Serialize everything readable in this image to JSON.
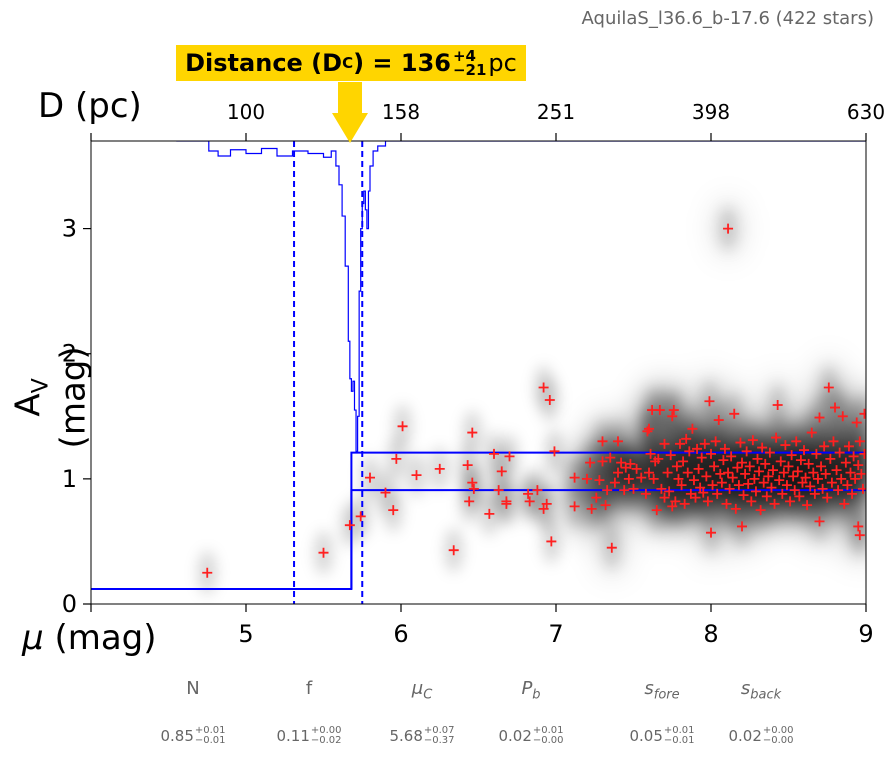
{
  "subtitle": "AquilaS_l36.6_b-17.6 (422 stars)",
  "callout": {
    "prefix": "Distance (D",
    "sub": "C",
    "mid": ") = 136",
    "plus": "+4",
    "minus": "−21",
    "unit": " pc"
  },
  "colors": {
    "step": "#0000ff",
    "stars": "#ff2020",
    "callout": "#ffd500"
  },
  "chart_data": {
    "type": "scatter",
    "xlabel_symbol": "μ",
    "xlabel_unit": " (mag)",
    "ylabel": "A",
    "ylabel_sub": "V",
    "ylabel_unit": " (mag)",
    "top_axis_label": "D (pc)",
    "xlim": [
      4,
      9
    ],
    "ylim": [
      0,
      3.7
    ],
    "x_ticks": [
      5,
      6,
      7,
      8,
      9
    ],
    "y_ticks": [
      0,
      1,
      2,
      3
    ],
    "top_ticks": [
      {
        "label": "100",
        "mu": 5
      },
      {
        "label": "158",
        "mu": 6
      },
      {
        "label": "251",
        "mu": 7
      },
      {
        "label": "398",
        "mu": 8
      },
      {
        "label": "630",
        "mu": 9
      }
    ],
    "distance_modulus": 5.68,
    "dashed_lines_mu": [
      5.31,
      5.75
    ],
    "extinction_fore": 0.12,
    "extinction_back_band": [
      0.91,
      1.21
    ],
    "stars": [
      [
        4.75,
        0.25
      ],
      [
        5.5,
        0.41
      ],
      [
        5.67,
        0.63
      ],
      [
        5.74,
        0.7
      ],
      [
        5.8,
        1.01
      ],
      [
        5.9,
        0.89
      ],
      [
        5.95,
        0.75
      ],
      [
        5.97,
        1.16
      ],
      [
        6.01,
        1.42
      ],
      [
        6.1,
        1.03
      ],
      [
        6.25,
        1.08
      ],
      [
        6.34,
        0.43
      ],
      [
        6.43,
        1.11
      ],
      [
        6.44,
        0.82
      ],
      [
        6.46,
        0.97
      ],
      [
        6.47,
        0.92
      ],
      [
        6.46,
        1.37
      ],
      [
        6.57,
        0.72
      ],
      [
        6.6,
        1.2
      ],
      [
        6.63,
        0.91
      ],
      [
        6.65,
        1.06
      ],
      [
        6.68,
        0.82
      ],
      [
        6.68,
        0.8
      ],
      [
        6.7,
        1.18
      ],
      [
        6.82,
        0.88
      ],
      [
        6.83,
        0.82
      ],
      [
        6.88,
        0.91
      ],
      [
        6.92,
        1.73
      ],
      [
        6.92,
        0.76
      ],
      [
        6.94,
        0.8
      ],
      [
        6.96,
        1.63
      ],
      [
        6.97,
        0.5
      ],
      [
        6.99,
        1.22
      ],
      [
        7.12,
        0.78
      ],
      [
        7.12,
        1.01
      ],
      [
        7.2,
        1.0
      ],
      [
        7.22,
        1.13
      ],
      [
        7.23,
        0.76
      ],
      [
        7.26,
        0.85
      ],
      [
        7.28,
        0.99
      ],
      [
        7.3,
        1.3
      ],
      [
        7.3,
        1.14
      ],
      [
        7.32,
        0.79
      ],
      [
        7.33,
        0.91
      ],
      [
        7.35,
        1.17
      ],
      [
        7.36,
        0.45
      ],
      [
        7.38,
        0.97
      ],
      [
        7.4,
        1.3
      ],
      [
        7.4,
        1.05
      ],
      [
        7.42,
        1.13
      ],
      [
        7.44,
        0.91
      ],
      [
        7.45,
        1.09
      ],
      [
        7.47,
        1.0
      ],
      [
        7.48,
        1.12
      ],
      [
        7.5,
        0.92
      ],
      [
        7.52,
        1.08
      ],
      [
        7.55,
        1.01
      ],
      [
        7.58,
        0.88
      ],
      [
        7.59,
        1.38
      ],
      [
        7.6,
        1.05
      ],
      [
        7.6,
        1.4
      ],
      [
        7.61,
        1.2
      ],
      [
        7.62,
        1.55
      ],
      [
        7.63,
        1.0
      ],
      [
        7.64,
        1.14
      ],
      [
        7.65,
        0.75
      ],
      [
        7.66,
        1.16
      ],
      [
        7.67,
        1.55
      ],
      [
        7.68,
        0.92
      ],
      [
        7.7,
        0.85
      ],
      [
        7.7,
        1.28
      ],
      [
        7.72,
        1.05
      ],
      [
        7.73,
        0.9
      ],
      [
        7.74,
        1.19
      ],
      [
        7.75,
        0.78
      ],
      [
        7.75,
        1.5
      ],
      [
        7.76,
        1.55
      ],
      [
        7.77,
        0.82
      ],
      [
        7.78,
        1.1
      ],
      [
        7.79,
        1.0
      ],
      [
        7.8,
        1.28
      ],
      [
        7.81,
        0.95
      ],
      [
        7.82,
        1.14
      ],
      [
        7.83,
        0.8
      ],
      [
        7.84,
        1.32
      ],
      [
        7.85,
        1.05
      ],
      [
        7.86,
        1.22
      ],
      [
        7.87,
        0.88
      ],
      [
        7.88,
        1.4
      ],
      [
        7.89,
        0.99
      ],
      [
        7.9,
        0.85
      ],
      [
        7.91,
        1.24
      ],
      [
        7.92,
        1.08
      ],
      [
        7.93,
        0.93
      ],
      [
        7.94,
        1.17
      ],
      [
        7.95,
        0.89
      ],
      [
        7.96,
        1.28
      ],
      [
        7.97,
        1.02
      ],
      [
        7.98,
        0.82
      ],
      [
        7.99,
        1.62
      ],
      [
        8.0,
        0.57
      ],
      [
        8.0,
        1.2
      ],
      [
        8.01,
        0.95
      ],
      [
        8.02,
        1.1
      ],
      [
        8.03,
        1.3
      ],
      [
        8.04,
        0.88
      ],
      [
        8.05,
        1.47
      ],
      [
        8.06,
        1.04
      ],
      [
        8.07,
        0.97
      ],
      [
        8.08,
        1.15
      ],
      [
        8.09,
        1.24
      ],
      [
        8.1,
        0.8
      ],
      [
        8.11,
        3.0
      ],
      [
        8.11,
        1.05
      ],
      [
        8.12,
        0.92
      ],
      [
        8.13,
        1.18
      ],
      [
        8.14,
        1.01
      ],
      [
        8.15,
        1.52
      ],
      [
        8.16,
        0.76
      ],
      [
        8.17,
        1.09
      ],
      [
        8.18,
        0.95
      ],
      [
        8.19,
        1.29
      ],
      [
        8.2,
        0.62
      ],
      [
        8.2,
        1.13
      ],
      [
        8.21,
        0.87
      ],
      [
        8.22,
        1.04
      ],
      [
        8.23,
        1.22
      ],
      [
        8.24,
        0.96
      ],
      [
        8.25,
        1.1
      ],
      [
        8.26,
        0.82
      ],
      [
        8.27,
        1.31
      ],
      [
        8.28,
        1.0
      ],
      [
        8.29,
        0.9
      ],
      [
        8.3,
        1.16
      ],
      [
        8.31,
        1.06
      ],
      [
        8.32,
        0.75
      ],
      [
        8.33,
        1.25
      ],
      [
        8.34,
        0.97
      ],
      [
        8.35,
        1.12
      ],
      [
        8.36,
        0.86
      ],
      [
        8.37,
        1.02
      ],
      [
        8.38,
        1.21
      ],
      [
        8.39,
        0.93
      ],
      [
        8.4,
        1.07
      ],
      [
        8.41,
        0.8
      ],
      [
        8.42,
        1.33
      ],
      [
        8.43,
        1.59
      ],
      [
        8.44,
        0.99
      ],
      [
        8.45,
        1.14
      ],
      [
        8.46,
        0.88
      ],
      [
        8.47,
        1.05
      ],
      [
        8.48,
        1.27
      ],
      [
        8.49,
        0.95
      ],
      [
        8.5,
        1.1
      ],
      [
        8.51,
        0.82
      ],
      [
        8.52,
        1.19
      ],
      [
        8.53,
        1.02
      ],
      [
        8.54,
        0.91
      ],
      [
        8.55,
        1.3
      ],
      [
        8.56,
        1.06
      ],
      [
        8.57,
        0.86
      ],
      [
        8.58,
        1.15
      ],
      [
        8.59,
        0.97
      ],
      [
        8.6,
        1.23
      ],
      [
        8.61,
        1.01
      ],
      [
        8.62,
        0.79
      ],
      [
        8.63,
        1.12
      ],
      [
        8.64,
        0.94
      ],
      [
        8.65,
        1.37
      ],
      [
        8.66,
        1.05
      ],
      [
        8.67,
        0.88
      ],
      [
        8.68,
        1.2
      ],
      [
        8.69,
        1.0
      ],
      [
        8.7,
        0.66
      ],
      [
        8.7,
        1.49
      ],
      [
        8.71,
        1.1
      ],
      [
        8.72,
        0.92
      ],
      [
        8.73,
        1.26
      ],
      [
        8.74,
        1.04
      ],
      [
        8.75,
        0.85
      ],
      [
        8.76,
        1.73
      ],
      [
        8.77,
        1.16
      ],
      [
        8.78,
        0.97
      ],
      [
        8.79,
        1.3
      ],
      [
        8.8,
        1.57
      ],
      [
        8.81,
        1.07
      ],
      [
        8.82,
        0.91
      ],
      [
        8.83,
        1.21
      ],
      [
        8.84,
        1.0
      ],
      [
        8.85,
        1.5
      ],
      [
        8.86,
        0.8
      ],
      [
        8.87,
        1.13
      ],
      [
        8.88,
        0.95
      ],
      [
        8.89,
        1.26
      ],
      [
        8.9,
        1.05
      ],
      [
        8.91,
        0.88
      ],
      [
        8.92,
        1.18
      ],
      [
        8.93,
        1.0
      ],
      [
        8.94,
        1.45
      ],
      [
        8.95,
        0.62
      ],
      [
        8.95,
        1.11
      ],
      [
        8.96,
        0.55
      ],
      [
        8.96,
        1.3
      ],
      [
        8.97,
        1.04
      ],
      [
        8.98,
        0.92
      ],
      [
        8.99,
        1.2
      ],
      [
        8.99,
        1.52
      ]
    ]
  },
  "params": [
    {
      "name": "N",
      "value": "0.85",
      "plus": "+0.01",
      "minus": "−0.01"
    },
    {
      "name": "f",
      "value": "0.11",
      "plus": "+0.00",
      "minus": "−0.02"
    },
    {
      "name": "μC",
      "value": "5.68",
      "plus": "+0.07",
      "minus": "−0.37"
    },
    {
      "name": "Pb",
      "value": "0.02",
      "plus": "+0.01",
      "minus": "−0.00"
    },
    {
      "name": "sfore",
      "value": "0.05",
      "plus": "+0.01",
      "minus": "−0.01"
    },
    {
      "name": "sback",
      "value": "0.02",
      "plus": "+0.00",
      "minus": "−0.00"
    }
  ]
}
